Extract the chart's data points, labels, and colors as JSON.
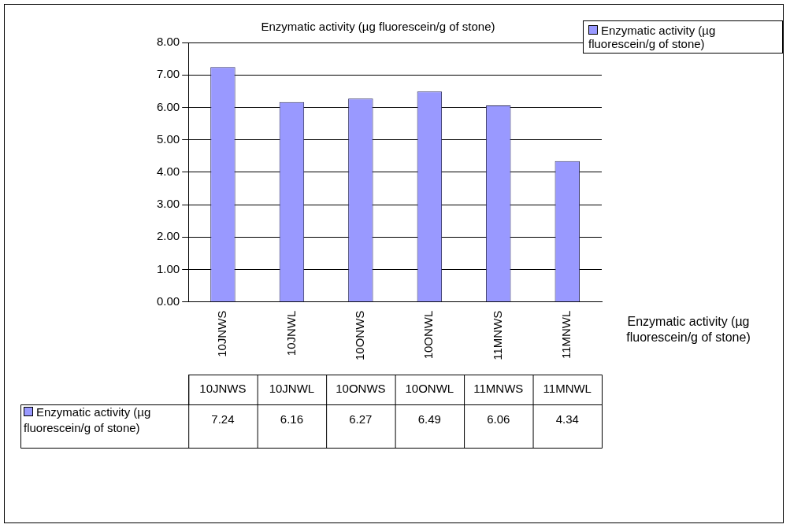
{
  "chart_data": {
    "type": "bar",
    "title": "Enzymatic activity (µg fluorescein/g of stone)",
    "categories": [
      "10JNWS",
      "10JNWL",
      "10ONWS",
      "10ONWL",
      "11MNWS",
      "11MNWL"
    ],
    "series": [
      {
        "name": "Enzymatic activity (µg fluorescein/g of stone)",
        "color": "#9999ff",
        "values": [
          7.24,
          6.16,
          6.27,
          6.49,
          6.06,
          4.34
        ]
      }
    ],
    "ylim": [
      0,
      8
    ],
    "yticks": [
      {
        "value": 0,
        "label": "0.00"
      },
      {
        "value": 1,
        "label": "1.00"
      },
      {
        "value": 2,
        "label": "2.00"
      },
      {
        "value": 3,
        "label": "3.00"
      },
      {
        "value": 4,
        "label": "4.00"
      },
      {
        "value": 5,
        "label": "5.00"
      },
      {
        "value": 6,
        "label": "6.00"
      },
      {
        "value": 7,
        "label": "7.00"
      },
      {
        "value": 8,
        "label": "8.00"
      }
    ],
    "grid": "y",
    "legend": "top right",
    "data_labels": true,
    "annotations": [
      "Enzymatic activity (µg fluorescein/g of stone)"
    ]
  }
}
